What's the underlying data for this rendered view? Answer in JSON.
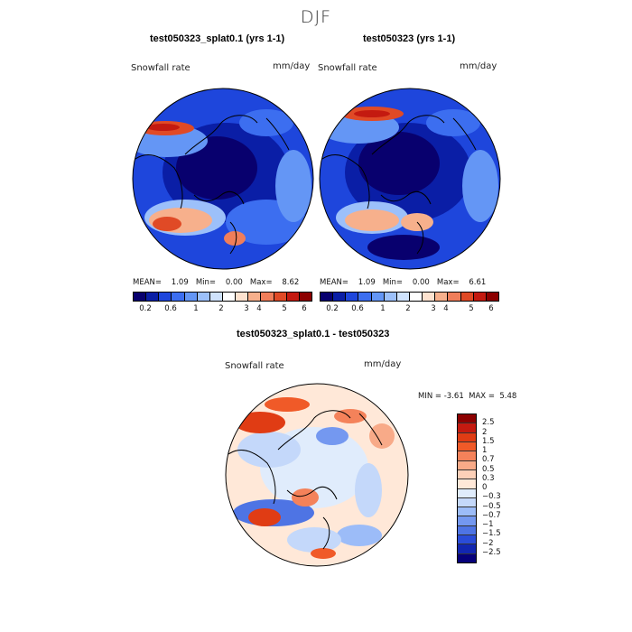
{
  "page": {
    "season": "DJF"
  },
  "panels": {
    "left": {
      "title": "test050323_splat0.1 (yrs 1-1)",
      "variable": "Snowfall rate",
      "units": "mm/day",
      "stats": "MEAN=    1.09   Min=    0.00   Max=    8.62"
    },
    "right": {
      "title": "test050323 (yrs 1-1)",
      "variable": "Snowfall rate",
      "units": "mm/day",
      "stats": "MEAN=    1.09   Min=    0.00   Max=    6.61"
    },
    "diff": {
      "title": "test050323_splat0.1 - test050323",
      "variable": "Snowfall rate",
      "units": "mm/day",
      "min_label": "MIN =",
      "min_value": "-3.61",
      "max_label": "MAX =",
      "max_value": "5.48"
    }
  },
  "colors": {
    "abs_scale": [
      "#08006e",
      "#0a1ea6",
      "#1e46dc",
      "#3c6ef0",
      "#6496f5",
      "#9cc0fa",
      "#cfe2fc",
      "#ffffff",
      "#fde2cf",
      "#f7b08c",
      "#f07e5a",
      "#e04a26",
      "#c41a10",
      "#8c0000"
    ],
    "diff_scale": [
      "#8c0000",
      "#c41a10",
      "#e03c14",
      "#f05a28",
      "#f4825a",
      "#f8aa88",
      "#fcd0b8",
      "#ffe8d8",
      "#e0ecfc",
      "#c4d8fa",
      "#9cbcf8",
      "#7498f0",
      "#4e74e4",
      "#2a4cd8",
      "#1226b0",
      "#06007a"
    ],
    "land_line": "#000000",
    "map_ocean": "#0f3fd6"
  },
  "chart_data": [
    {
      "type": "heatmap",
      "title": "test050323_splat0.1 (yrs 1-1)",
      "variable": "Snowfall rate",
      "units": "mm/day",
      "projection": "north-polar-stereographic",
      "mean": 1.09,
      "min": 0.0,
      "max": 8.62,
      "colorbar_ticks": [
        0.2,
        0.6,
        1,
        2,
        3,
        4,
        5,
        6
      ],
      "colorbar_orientation": "horizontal"
    },
    {
      "type": "heatmap",
      "title": "test050323 (yrs 1-1)",
      "variable": "Snowfall rate",
      "units": "mm/day",
      "projection": "north-polar-stereographic",
      "mean": 1.09,
      "min": 0.0,
      "max": 6.61,
      "colorbar_ticks": [
        0.2,
        0.6,
        1,
        2,
        3,
        4,
        5,
        6
      ],
      "colorbar_orientation": "horizontal"
    },
    {
      "type": "heatmap",
      "title": "test050323_splat0.1 - test050323",
      "variable": "Snowfall rate",
      "units": "mm/day",
      "projection": "north-polar-stereographic",
      "min": -3.61,
      "max": 5.48,
      "colorbar_ticks": [
        "2.5",
        "2",
        "1.5",
        "1",
        "0.7",
        "0.5",
        "0.3",
        "0",
        "−0.3",
        "−0.5",
        "−0.7",
        "−1",
        "−1.5",
        "−2",
        "−2.5"
      ],
      "colorbar_orientation": "vertical"
    }
  ]
}
